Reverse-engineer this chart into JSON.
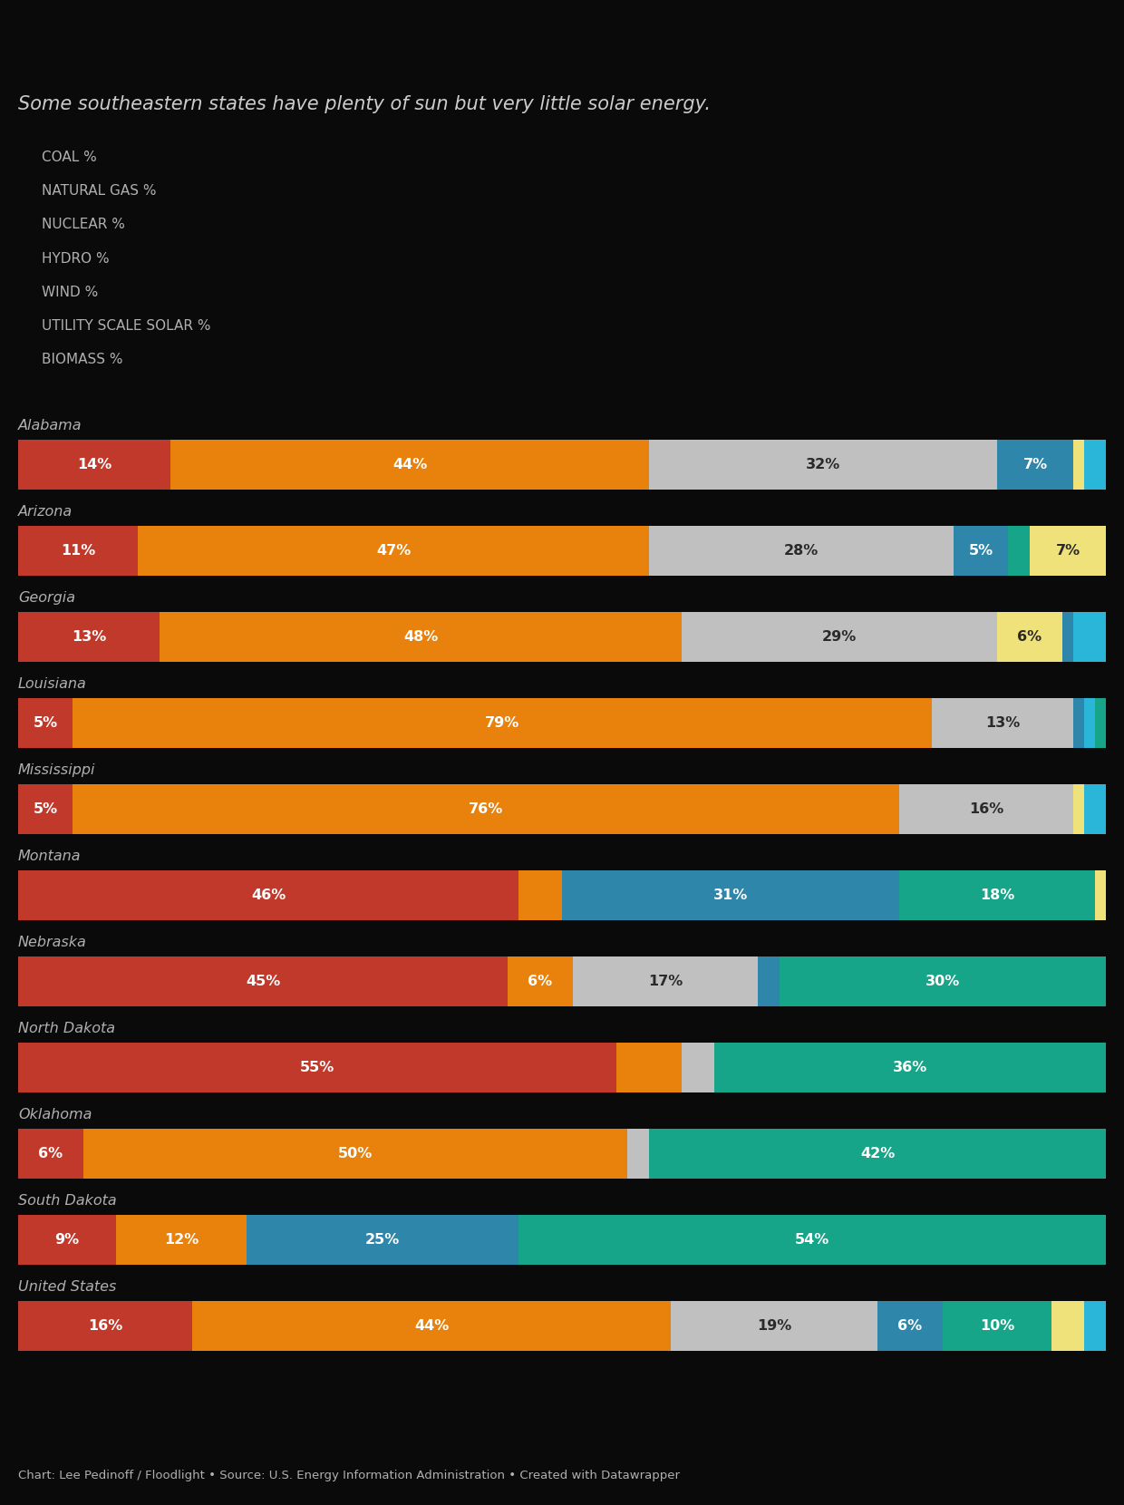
{
  "title": "Some southeastern states have plenty of sun but very little solar energy.",
  "footer": "Chart: Lee Pedinoff / Floodlight • Source: U.S. Energy Information Administration • Created with Datawrapper",
  "background_color": "#0a0a0a",
  "text_color": "#b0b0b0",
  "title_color": "#cccccc",
  "legend": [
    {
      "label": "COAL %",
      "color": "#c1392b"
    },
    {
      "label": "NATURAL GAS %",
      "color": "#e8820c"
    },
    {
      "label": "NUCLEAR %",
      "color": "#c0c0c0"
    },
    {
      "label": "HYDRO %",
      "color": "#2e86ab"
    },
    {
      "label": "WIND %",
      "color": "#17a589"
    },
    {
      "label": "UTILITY SCALE SOLAR %",
      "color": "#f0e27a"
    },
    {
      "label": "BIOMASS %",
      "color": "#29b6d8"
    }
  ],
  "states": [
    {
      "name": "Alabama",
      "segments": [
        {
          "label": "14%",
          "value": 14,
          "color": "#c1392b"
        },
        {
          "label": "44%",
          "value": 44,
          "color": "#e8820c"
        },
        {
          "label": "32%",
          "value": 32,
          "color": "#c0c0c0"
        },
        {
          "label": "7%",
          "value": 7,
          "color": "#2e86ab"
        },
        {
          "label": "",
          "value": 1,
          "color": "#f0e27a"
        },
        {
          "label": "",
          "value": 2,
          "color": "#29b6d8"
        }
      ]
    },
    {
      "name": "Arizona",
      "segments": [
        {
          "label": "11%",
          "value": 11,
          "color": "#c1392b"
        },
        {
          "label": "47%",
          "value": 47,
          "color": "#e8820c"
        },
        {
          "label": "28%",
          "value": 28,
          "color": "#c0c0c0"
        },
        {
          "label": "5%",
          "value": 5,
          "color": "#2e86ab"
        },
        {
          "label": "",
          "value": 2,
          "color": "#17a589"
        },
        {
          "label": "7%",
          "value": 7,
          "color": "#f0e27a"
        }
      ]
    },
    {
      "name": "Georgia",
      "segments": [
        {
          "label": "13%",
          "value": 13,
          "color": "#c1392b"
        },
        {
          "label": "48%",
          "value": 48,
          "color": "#e8820c"
        },
        {
          "label": "29%",
          "value": 29,
          "color": "#c0c0c0"
        },
        {
          "label": "6%",
          "value": 6,
          "color": "#f0e27a"
        },
        {
          "label": "",
          "value": 1,
          "color": "#2e86ab"
        },
        {
          "label": "",
          "value": 3,
          "color": "#29b6d8"
        }
      ]
    },
    {
      "name": "Louisiana",
      "segments": [
        {
          "label": "5%",
          "value": 5,
          "color": "#c1392b"
        },
        {
          "label": "79%",
          "value": 79,
          "color": "#e8820c"
        },
        {
          "label": "13%",
          "value": 13,
          "color": "#c0c0c0"
        },
        {
          "label": "",
          "value": 1,
          "color": "#2e86ab"
        },
        {
          "label": "",
          "value": 1,
          "color": "#29b6d8"
        },
        {
          "label": "",
          "value": 1,
          "color": "#17a589"
        }
      ]
    },
    {
      "name": "Mississippi",
      "segments": [
        {
          "label": "5%",
          "value": 5,
          "color": "#c1392b"
        },
        {
          "label": "76%",
          "value": 76,
          "color": "#e8820c"
        },
        {
          "label": "16%",
          "value": 16,
          "color": "#c0c0c0"
        },
        {
          "label": "",
          "value": 1,
          "color": "#f0e27a"
        },
        {
          "label": "",
          "value": 2,
          "color": "#29b6d8"
        }
      ]
    },
    {
      "name": "Montana",
      "segments": [
        {
          "label": "46%",
          "value": 46,
          "color": "#c1392b"
        },
        {
          "label": "",
          "value": 4,
          "color": "#e8820c"
        },
        {
          "label": "31%",
          "value": 31,
          "color": "#2e86ab"
        },
        {
          "label": "18%",
          "value": 18,
          "color": "#17a589"
        },
        {
          "label": "",
          "value": 1,
          "color": "#f0e27a"
        }
      ]
    },
    {
      "name": "Nebraska",
      "segments": [
        {
          "label": "45%",
          "value": 45,
          "color": "#c1392b"
        },
        {
          "label": "6%",
          "value": 6,
          "color": "#e8820c"
        },
        {
          "label": "17%",
          "value": 17,
          "color": "#c0c0c0"
        },
        {
          "label": "",
          "value": 2,
          "color": "#2e86ab"
        },
        {
          "label": "30%",
          "value": 30,
          "color": "#17a589"
        }
      ]
    },
    {
      "name": "North Dakota",
      "segments": [
        {
          "label": "55%",
          "value": 55,
          "color": "#c1392b"
        },
        {
          "label": "",
          "value": 6,
          "color": "#e8820c"
        },
        {
          "label": "",
          "value": 3,
          "color": "#c0c0c0"
        },
        {
          "label": "36%",
          "value": 36,
          "color": "#17a589"
        }
      ]
    },
    {
      "name": "Oklahoma",
      "segments": [
        {
          "label": "6%",
          "value": 6,
          "color": "#c1392b"
        },
        {
          "label": "50%",
          "value": 50,
          "color": "#e8820c"
        },
        {
          "label": "",
          "value": 2,
          "color": "#c0c0c0"
        },
        {
          "label": "42%",
          "value": 42,
          "color": "#17a589"
        }
      ]
    },
    {
      "name": "South Dakota",
      "segments": [
        {
          "label": "9%",
          "value": 9,
          "color": "#c1392b"
        },
        {
          "label": "12%",
          "value": 12,
          "color": "#e8820c"
        },
        {
          "label": "25%",
          "value": 25,
          "color": "#2e86ab"
        },
        {
          "label": "54%",
          "value": 54,
          "color": "#17a589"
        }
      ]
    },
    {
      "name": "United States",
      "segments": [
        {
          "label": "16%",
          "value": 16,
          "color": "#c1392b"
        },
        {
          "label": "44%",
          "value": 44,
          "color": "#e8820c"
        },
        {
          "label": "19%",
          "value": 19,
          "color": "#c0c0c0"
        },
        {
          "label": "6%",
          "value": 6,
          "color": "#2e86ab"
        },
        {
          "label": "10%",
          "value": 10,
          "color": "#17a589"
        },
        {
          "label": "",
          "value": 3,
          "color": "#f0e27a"
        },
        {
          "label": "",
          "value": 2,
          "color": "#29b6d8"
        }
      ]
    }
  ]
}
